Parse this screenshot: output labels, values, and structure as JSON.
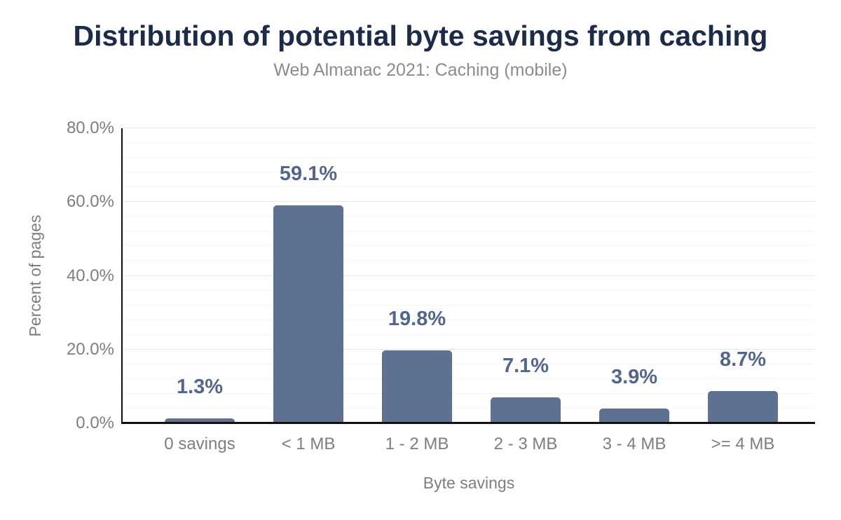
{
  "chart_data": {
    "type": "bar",
    "title": "Distribution of potential byte savings from caching",
    "subtitle": "Web Almanac 2021: Caching (mobile)",
    "categories": [
      "0 savings",
      "< 1 MB",
      "1 - 2 MB",
      "2 - 3 MB",
      "3 - 4 MB",
      ">= 4 MB"
    ],
    "values": [
      1.3,
      59.1,
      19.8,
      7.1,
      3.9,
      8.7
    ],
    "value_labels": [
      "1.3%",
      "59.1%",
      "19.8%",
      "7.1%",
      "3.9%",
      "8.7%"
    ],
    "xlabel": "Byte savings",
    "ylabel": "Percent of pages",
    "ylim": [
      0,
      80
    ],
    "yticks": [
      0,
      20,
      40,
      60,
      80
    ],
    "ytick_labels": [
      "0.0%",
      "20.0%",
      "40.0%",
      "60.0%",
      "80.0%"
    ],
    "minor_grid_step": 4,
    "grid": "horizontal major+minor",
    "legend": "none",
    "colors": {
      "bar": "#5f7190",
      "value_label": "#52668d",
      "title": "#1c2b4a",
      "subtitle": "#8c8c8c",
      "axis_text": "#7e7e7e",
      "axis_line": "#111111",
      "grid_major": "#e8e8e8",
      "grid_minor": "#f6f6f6"
    }
  }
}
